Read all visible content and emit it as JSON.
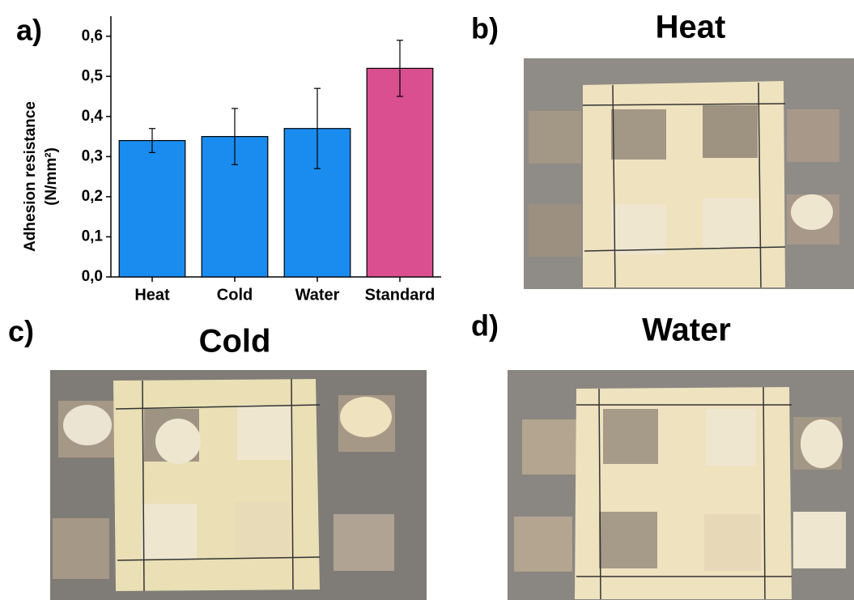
{
  "chart_data": {
    "type": "bar",
    "panel_label": "a)",
    "ylabel": [
      "Adhesion resistance",
      "(N/mm²)"
    ],
    "categories": [
      "Heat",
      "Cold",
      "Water",
      "Standard"
    ],
    "values": [
      0.34,
      0.35,
      0.37,
      0.52
    ],
    "errors": [
      0.03,
      0.07,
      0.1,
      0.07
    ],
    "colors": [
      "#1a8cf0",
      "#1a8cf0",
      "#1a8cf0",
      "#d94f8f"
    ],
    "ylim": [
      0,
      0.65
    ],
    "yticks": [
      {
        "value": 0,
        "label": "0,0"
      },
      {
        "value": 0.1,
        "label": "0,1"
      },
      {
        "value": 0.2,
        "label": "0,2"
      },
      {
        "value": 0.3,
        "label": "0,3"
      },
      {
        "value": 0.4,
        "label": "0,4"
      },
      {
        "value": 0.5,
        "label": "0,5"
      },
      {
        "value": 0.6,
        "label": "0,6"
      }
    ]
  },
  "photos": [
    {
      "label": "b)",
      "title": "Heat"
    },
    {
      "label": "c)",
      "title": "Cold"
    },
    {
      "label": "d)",
      "title": "Water"
    }
  ]
}
